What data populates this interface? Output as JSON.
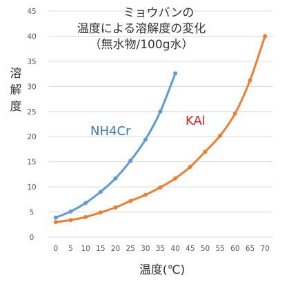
{
  "chart_data": {
    "type": "line",
    "title": [
      "ミョウバンの",
      "温度による溶解度の変化",
      "（無水物/100g水）"
    ],
    "ylabel": "溶解度",
    "xlabel": "温度(℃)",
    "xlim": [
      -2.5,
      72.5
    ],
    "ylim": [
      0,
      45
    ],
    "xticks": [
      0,
      5,
      10,
      15,
      20,
      25,
      30,
      35,
      40,
      45,
      50,
      55,
      60,
      65,
      70
    ],
    "yticks": [
      0,
      5,
      10,
      15,
      20,
      25,
      30,
      35,
      40,
      45
    ],
    "grid": true,
    "series": [
      {
        "name": "NH4Cr",
        "color": "#5b9bd5",
        "x": [
          0,
          5,
          10,
          15,
          20,
          25,
          30,
          35,
          40
        ],
        "values": [
          3.9,
          5.1,
          6.8,
          9.0,
          11.7,
          15.2,
          19.4,
          25.0,
          32.6
        ]
      },
      {
        "name": "KAl",
        "color": "#ed7d31",
        "x": [
          0,
          5,
          10,
          15,
          20,
          25,
          30,
          35,
          40,
          45,
          50,
          55,
          60,
          65,
          70
        ],
        "values": [
          3.0,
          3.4,
          4.0,
          4.9,
          5.9,
          7.2,
          8.4,
          9.9,
          11.7,
          14.0,
          17.0,
          20.2,
          24.6,
          31.2,
          40.0
        ]
      }
    ]
  }
}
